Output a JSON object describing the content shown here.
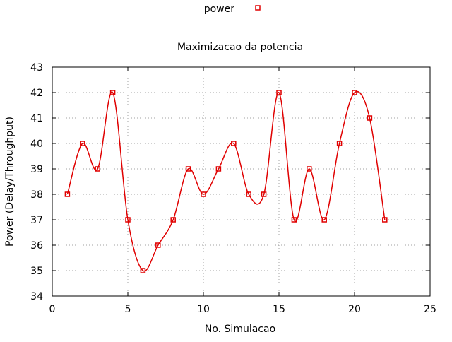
{
  "chart_data": {
    "type": "line",
    "title": "Maximizacao da potencia",
    "xlabel": "No. Simulacao",
    "ylabel": "Power (Delay/Throughput)",
    "xlim": [
      0,
      25
    ],
    "ylim": [
      34,
      43
    ],
    "xticks": [
      0,
      5,
      10,
      15,
      20,
      25
    ],
    "yticks": [
      34,
      35,
      36,
      37,
      38,
      39,
      40,
      41,
      42,
      43
    ],
    "grid": true,
    "legend_position": "top-center",
    "series": [
      {
        "name": "power",
        "color": "#e00000",
        "marker": "square-open",
        "smooth": true,
        "x": [
          1,
          2,
          3,
          4,
          5,
          6,
          7,
          8,
          9,
          10,
          11,
          12,
          13,
          14,
          15,
          16,
          17,
          18,
          19,
          20,
          21,
          22
        ],
        "y": [
          38,
          40,
          39,
          42,
          37,
          35,
          36,
          37,
          39,
          38,
          39,
          40,
          38,
          38,
          42,
          37,
          39,
          37,
          40,
          42,
          41,
          37
        ]
      }
    ]
  }
}
